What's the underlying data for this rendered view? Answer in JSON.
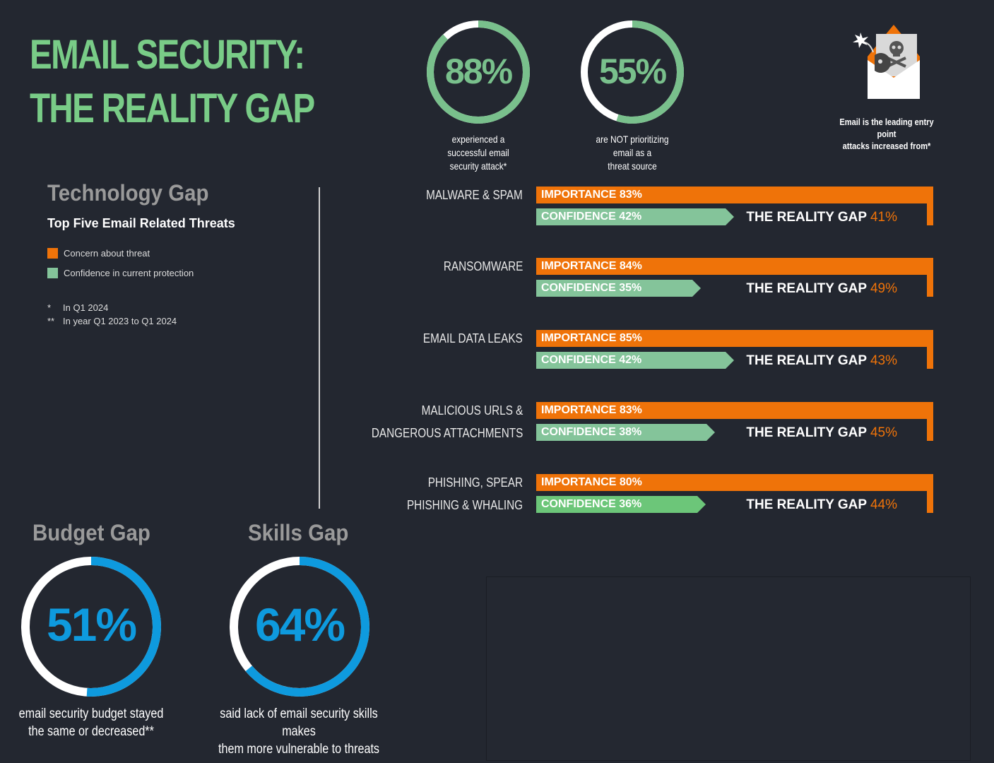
{
  "header": {
    "title_line1": "EMAIL SECURITY:",
    "title_line2": "THE REALITY GAP"
  },
  "top_stats": [
    {
      "value": "88%",
      "fraction": 0.88,
      "caption": [
        "experienced a",
        "successful email",
        "security attack*"
      ],
      "color": "#79c08c",
      "track": "#ffffff"
    },
    {
      "value": "55%",
      "fraction": 0.55,
      "caption": [
        "are NOT prioritizing",
        "email as a",
        "threat source"
      ],
      "color": "#79c08c",
      "track": "#ffffff"
    }
  ],
  "email_callout": {
    "icon": "envelope-skull-bomb-icon",
    "caption": [
      "Email is the leading entry point",
      "attacks increased from*"
    ]
  },
  "technology_gap": {
    "heading": "Technology Gap",
    "subheading": "Top Five Email Related Threats",
    "legend": [
      {
        "label": "Concern about threat",
        "color": "#ef7309"
      },
      {
        "label": "Confidence in current protection",
        "color": "#84c49a"
      }
    ],
    "notes": [
      {
        "marker": "*",
        "text": "In Q1 2024"
      },
      {
        "marker": "**",
        "text": "In year Q1 2023 to Q1 2024"
      }
    ]
  },
  "chart_data": {
    "type": "bar",
    "title": "Top Five Email Related Threats",
    "categories": [
      "MALWARE & SPAM",
      "RANSOMWARE",
      "EMAIL DATA LEAKS",
      "MALICIOUS URLS & DANGEROUS ATTACHMENTS",
      "PHISHING, SPEAR PHISHING & WHALING"
    ],
    "category_lines": [
      [
        "MALWARE & SPAM"
      ],
      [
        "RANSOMWARE"
      ],
      [
        "EMAIL DATA LEAKS"
      ],
      [
        "MALICIOUS URLS &",
        "DANGEROUS ATTACHMENTS"
      ],
      [
        "PHISHING, SPEAR",
        "PHISHING & WHALING"
      ]
    ],
    "series": [
      {
        "name": "Importance",
        "label_prefix": "IMPORTANCE",
        "color": "#ef7309",
        "values": [
          83,
          84,
          85,
          83,
          80
        ]
      },
      {
        "name": "Confidence",
        "label_prefix": "CONFIDENCE",
        "color": "#84c49a",
        "values": [
          42,
          35,
          42,
          38,
          36
        ]
      }
    ],
    "gap_label": "THE REALITY GAP",
    "gaps": [
      41,
      49,
      43,
      45,
      44
    ],
    "unit": "%",
    "ylim": [
      0,
      100
    ]
  },
  "budget_gap": {
    "heading": "Budget Gap",
    "value": "51%",
    "fraction": 0.51,
    "caption": [
      "email security budget stayed",
      "the same or decreased**"
    ],
    "color": "#0e9ade"
  },
  "skills_gap": {
    "heading": "Skills Gap",
    "value": "64%",
    "fraction": 0.64,
    "caption": [
      "said lack of email security skills makes",
      "them more vulnerable to threats"
    ],
    "color": "#0e9ade"
  }
}
